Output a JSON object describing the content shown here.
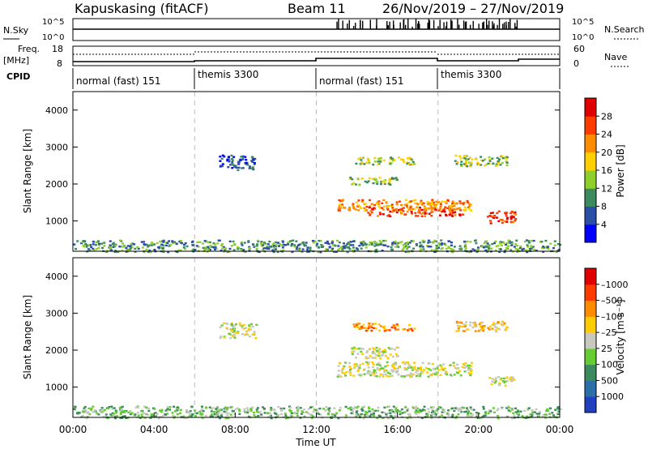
{
  "header": {
    "station": "Kapuskasing (fitACF)",
    "beam": "Beam 11",
    "dates": "26/Nov/2019 – 27/Nov/2019"
  },
  "top_panels": {
    "nsky": {
      "label": "N.Sky",
      "ticks_left": [
        "10^5",
        "10^0"
      ],
      "ticks_right": [
        "10^5",
        "10^0"
      ],
      "right_label": "N.Search"
    },
    "freq": {
      "label": "Freq.",
      "unit": "[MHz]",
      "ticks_left": [
        "18",
        "8"
      ],
      "ticks_right": [
        "60",
        "0"
      ],
      "right_label": "Nave"
    },
    "cpid": {
      "label": "CPID",
      "segments": [
        {
          "label": "normal (fast) 151",
          "start_h": 0,
          "end_h": 6
        },
        {
          "label": "themis 3300",
          "start_h": 6,
          "end_h": 12
        },
        {
          "label": "normal (fast) 151",
          "start_h": 12,
          "end_h": 18
        },
        {
          "label": "themis 3300",
          "start_h": 18,
          "end_h": 24
        }
      ]
    }
  },
  "chart_data": [
    {
      "type": "heatmap",
      "panel": "power",
      "title": "",
      "xlabel": "",
      "ylabel": "Slant Range [km]",
      "xlim": [
        0,
        24
      ],
      "ylim": [
        180,
        4500
      ],
      "yticks": [
        1000,
        2000,
        3000,
        4000
      ],
      "colorbar": {
        "label": "Power [dB]",
        "ticks": [
          "4",
          "8",
          "12",
          "16",
          "20",
          "24",
          "28"
        ],
        "colors": [
          "#0000ff",
          "#2b4fa8",
          "#3c8b5f",
          "#8fcf2b",
          "#ffcf00",
          "#ff8c00",
          "#ff3b00",
          "#e00000"
        ]
      },
      "bands": [
        {
          "h0": 7.2,
          "h1": 9.0,
          "r0": 2400,
          "r1": 2800,
          "c": 1
        },
        {
          "h0": 13.8,
          "h1": 16.8,
          "r0": 2550,
          "r1": 2750,
          "c": 3
        },
        {
          "h0": 13.6,
          "h1": 16.0,
          "r0": 2000,
          "r1": 2200,
          "c": 3
        },
        {
          "h0": 13.0,
          "h1": 19.6,
          "r0": 1300,
          "r1": 1600,
          "c": 5
        },
        {
          "h0": 14.5,
          "h1": 19.2,
          "r0": 1150,
          "r1": 1400,
          "c": 6
        },
        {
          "h0": 18.8,
          "h1": 21.4,
          "r0": 2500,
          "r1": 2800,
          "c": 3
        },
        {
          "h0": 20.4,
          "h1": 21.8,
          "r0": 950,
          "r1": 1300,
          "c": 6
        },
        {
          "h0": 0.0,
          "h1": 24.0,
          "r0": 180,
          "r1": 500,
          "c": 2
        }
      ]
    },
    {
      "type": "heatmap",
      "panel": "velocity",
      "title": "",
      "xlabel": "Time UT",
      "ylabel": "Slant Range [km]",
      "xlim": [
        0,
        24
      ],
      "ylim": [
        180,
        4500
      ],
      "yticks": [
        1000,
        2000,
        3000,
        4000
      ],
      "xticks": [
        "00:00",
        "04:00",
        "08:00",
        "12:00",
        "16:00",
        "20:00",
        "00:00"
      ],
      "colorbar": {
        "label": "Velocity [m s⁻¹]",
        "ticks": [
          "1000",
          "500",
          "100",
          "25",
          "–25",
          "–100",
          "–500",
          "–1000"
        ],
        "colors": [
          "#2040c0",
          "#2a6fa8",
          "#3c8b5f",
          "#66cc33",
          "#c8c8c0",
          "#ffcc00",
          "#ff8c00",
          "#ff3b00",
          "#e00000"
        ]
      },
      "bands": [
        {
          "h0": 7.2,
          "h1": 9.0,
          "r0": 2350,
          "r1": 2750,
          "c": 4
        },
        {
          "h0": 13.8,
          "h1": 16.8,
          "r0": 2550,
          "r1": 2750,
          "c": 6
        },
        {
          "h0": 13.6,
          "h1": 16.0,
          "r0": 1800,
          "r1": 2100,
          "c": 4
        },
        {
          "h0": 13.0,
          "h1": 19.6,
          "r0": 1300,
          "r1": 1700,
          "c": 4
        },
        {
          "h0": 18.8,
          "h1": 21.4,
          "r0": 2500,
          "r1": 2800,
          "c": 5
        },
        {
          "h0": 20.4,
          "h1": 21.8,
          "r0": 1050,
          "r1": 1300,
          "c": 4
        },
        {
          "h0": 0.0,
          "h1": 24.0,
          "r0": 180,
          "r1": 500,
          "c": 3
        }
      ]
    }
  ]
}
